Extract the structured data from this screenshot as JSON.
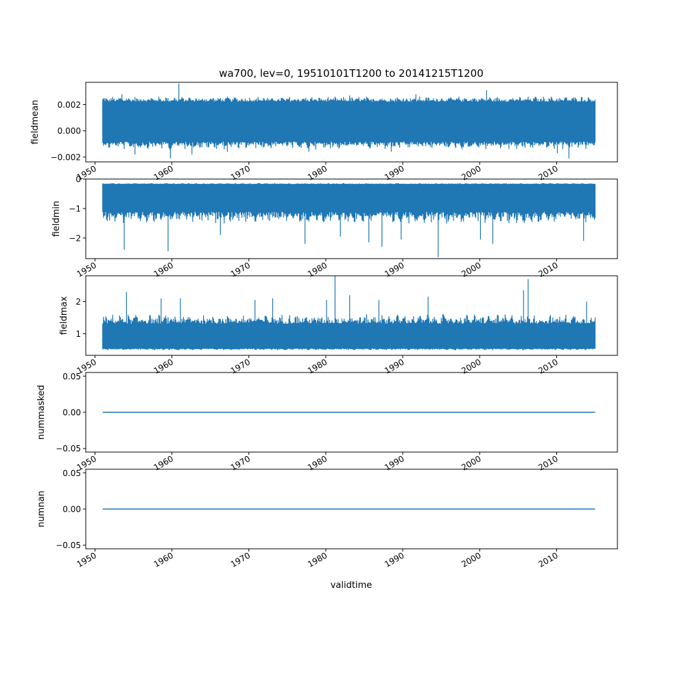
{
  "figure": {
    "title": "wa700, lev=0, 19510101T1200 to 20141215T1200",
    "xlabel": "validtime",
    "line_color": "#1f77b4"
  },
  "chart_data": [
    {
      "type": "line",
      "ylabel": "fieldmean",
      "xlim": [
        1948.8,
        2017.9
      ],
      "ylim": [
        -0.00237,
        0.0037
      ],
      "x_ticks": [
        "1950",
        "1960",
        "1970",
        "1980",
        "1990",
        "2000",
        "2010"
      ],
      "x_tick_values": [
        1950,
        1960,
        1970,
        1980,
        1990,
        2000,
        2010
      ],
      "y_ticks": [
        "0.002",
        "0.000",
        "−0.002"
      ],
      "y_tick_values": [
        0.002,
        0.0,
        -0.002
      ],
      "x_range": [
        1951.0,
        2015.0
      ],
      "baseline": [
        -0.0008,
        0.0022
      ],
      "band_typical": [
        -0.0014,
        0.0026
      ],
      "band_x_step": 0.1,
      "extremes": [
        {
          "x": 1953.5,
          "y": 0.0028
        },
        {
          "x": 1955.2,
          "y": -0.0018
        },
        {
          "x": 1959.8,
          "y": -0.0021
        },
        {
          "x": 1960.9,
          "y": 0.0036
        },
        {
          "x": 1962.6,
          "y": -0.0018
        },
        {
          "x": 1967.2,
          "y": -0.0016
        },
        {
          "x": 1971.9,
          "y": 0.0025
        },
        {
          "x": 1977.8,
          "y": -0.0016
        },
        {
          "x": 1983.1,
          "y": 0.0027
        },
        {
          "x": 1988.5,
          "y": -0.0016
        },
        {
          "x": 1991.7,
          "y": 0.0028
        },
        {
          "x": 2000.9,
          "y": 0.0031
        },
        {
          "x": 2007.3,
          "y": 0.0026
        },
        {
          "x": 2010.1,
          "y": -0.0017
        },
        {
          "x": 2011.6,
          "y": -0.0021
        }
      ]
    },
    {
      "type": "line",
      "ylabel": "fieldmin",
      "xlim": [
        1948.8,
        2017.9
      ],
      "ylim": [
        -2.7,
        0.0
      ],
      "x_ticks": [
        "1950",
        "1960",
        "1970",
        "1980",
        "1990",
        "2000",
        "2010"
      ],
      "x_tick_values": [
        1950,
        1960,
        1970,
        1980,
        1990,
        2000,
        2010
      ],
      "y_ticks": [
        "0",
        "−1",
        "−2"
      ],
      "y_tick_values": [
        0,
        -1,
        -2
      ],
      "x_range": [
        1951.0,
        2015.0
      ],
      "baseline": [
        -1.1,
        -0.18
      ],
      "band_typical": [
        -1.5,
        -0.15
      ],
      "band_x_step": 0.1,
      "extremes": [
        {
          "x": 1953.8,
          "y": -2.4
        },
        {
          "x": 1959.5,
          "y": -2.45
        },
        {
          "x": 1966.3,
          "y": -1.9
        },
        {
          "x": 1977.3,
          "y": -2.2
        },
        {
          "x": 1981.9,
          "y": -1.95
        },
        {
          "x": 1985.6,
          "y": -2.15
        },
        {
          "x": 1987.3,
          "y": -2.3
        },
        {
          "x": 1989.8,
          "y": -2.05
        },
        {
          "x": 1994.6,
          "y": -2.65
        },
        {
          "x": 2000.1,
          "y": -2.05
        },
        {
          "x": 2001.7,
          "y": -2.2
        },
        {
          "x": 2013.5,
          "y": -2.1
        }
      ]
    },
    {
      "type": "line",
      "ylabel": "fieldmax",
      "xlim": [
        1948.8,
        2017.9
      ],
      "ylim": [
        0.33,
        2.8
      ],
      "x_ticks": [
        "1950",
        "1960",
        "1970",
        "1980",
        "1990",
        "2000",
        "2010"
      ],
      "x_tick_values": [
        1950,
        1960,
        1970,
        1980,
        1990,
        2000,
        2010
      ],
      "y_ticks": [
        "2",
        "1"
      ],
      "y_tick_values": [
        2,
        1
      ],
      "x_range": [
        1951.0,
        2015.0
      ],
      "baseline": [
        0.55,
        1.3
      ],
      "band_typical": [
        0.5,
        1.6
      ],
      "band_x_step": 0.1,
      "extremes": [
        {
          "x": 1954.1,
          "y": 2.3
        },
        {
          "x": 1958.6,
          "y": 2.1
        },
        {
          "x": 1961.1,
          "y": 2.1
        },
        {
          "x": 1970.8,
          "y": 2.05
        },
        {
          "x": 1973.1,
          "y": 2.1
        },
        {
          "x": 1980.1,
          "y": 2.05
        },
        {
          "x": 1981.2,
          "y": 2.8
        },
        {
          "x": 1983.1,
          "y": 2.2
        },
        {
          "x": 1986.9,
          "y": 2.05
        },
        {
          "x": 1993.3,
          "y": 2.15
        },
        {
          "x": 2005.7,
          "y": 2.35
        },
        {
          "x": 2006.3,
          "y": 2.7
        },
        {
          "x": 2013.9,
          "y": 2.0
        }
      ]
    },
    {
      "type": "line",
      "ylabel": "nummasked",
      "xlim": [
        1948.8,
        2017.9
      ],
      "ylim": [
        -0.055,
        0.055
      ],
      "x_ticks": [
        "1950",
        "1960",
        "1970",
        "1980",
        "1990",
        "2000",
        "2010"
      ],
      "x_tick_values": [
        1950,
        1960,
        1970,
        1980,
        1990,
        2000,
        2010
      ],
      "y_ticks": [
        "0.05",
        "0.00",
        "−0.05"
      ],
      "y_tick_values": [
        0.05,
        0.0,
        -0.05
      ],
      "x": [
        1951.0,
        2015.0
      ],
      "y": [
        0.0,
        0.0
      ]
    },
    {
      "type": "line",
      "ylabel": "numnan",
      "xlim": [
        1948.8,
        2017.9
      ],
      "ylim": [
        -0.055,
        0.055
      ],
      "x_ticks": [
        "1950",
        "1960",
        "1970",
        "1980",
        "1990",
        "2000",
        "2010"
      ],
      "x_tick_values": [
        1950,
        1960,
        1970,
        1980,
        1990,
        2000,
        2010
      ],
      "y_ticks": [
        "0.05",
        "0.00",
        "−0.05"
      ],
      "y_tick_values": [
        0.05,
        0.0,
        -0.05
      ],
      "x": [
        1951.0,
        2015.0
      ],
      "y": [
        0.0,
        0.0
      ]
    }
  ]
}
